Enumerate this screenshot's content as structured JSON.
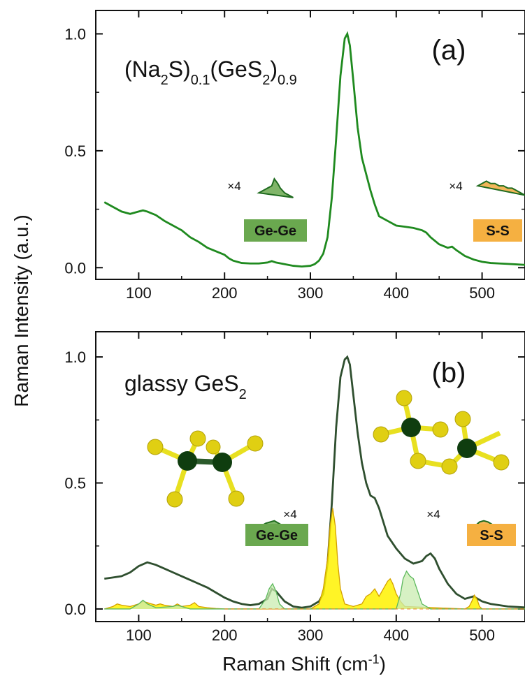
{
  "chart_data": [
    {
      "panel": "a",
      "type": "line",
      "panel_label": "(a)",
      "sample": {
        "base": "(Na",
        "s1": "2",
        "mid1": "S)",
        "s2": "0.1",
        "mid2": "(GeS",
        "s3": "2",
        "mid3": ")",
        "s4": "0.9"
      },
      "xlim": [
        50,
        550
      ],
      "ylim": [
        -0.05,
        1.1
      ],
      "xticks": [
        100,
        200,
        300,
        400,
        500
      ],
      "xtick_labels": [
        "100",
        "200",
        "300",
        "400",
        "500"
      ],
      "yticks": [
        0.0,
        0.5,
        1.0
      ],
      "ytick_labels": [
        "0.0",
        "0.5",
        "1.0"
      ],
      "series": [
        {
          "color": "#1f8a1f",
          "x": [
            60,
            70,
            80,
            90,
            100,
            105,
            110,
            120,
            130,
            140,
            150,
            160,
            170,
            180,
            190,
            200,
            205,
            210,
            220,
            230,
            240,
            250,
            255,
            260,
            270,
            280,
            290,
            300,
            305,
            310,
            315,
            320,
            325,
            330,
            335,
            340,
            343,
            346,
            350,
            355,
            360,
            365,
            370,
            375,
            380,
            390,
            400,
            410,
            420,
            430,
            435,
            440,
            450,
            460,
            465,
            470,
            480,
            490,
            500,
            510,
            520,
            530,
            540,
            550
          ],
          "y": [
            0.28,
            0.26,
            0.24,
            0.23,
            0.24,
            0.245,
            0.24,
            0.225,
            0.2,
            0.18,
            0.16,
            0.13,
            0.11,
            0.085,
            0.07,
            0.055,
            0.04,
            0.03,
            0.02,
            0.018,
            0.018,
            0.022,
            0.028,
            0.022,
            0.015,
            0.008,
            0.005,
            0.008,
            0.015,
            0.03,
            0.06,
            0.13,
            0.3,
            0.55,
            0.82,
            0.98,
            1.0,
            0.95,
            0.8,
            0.6,
            0.47,
            0.4,
            0.33,
            0.27,
            0.22,
            0.2,
            0.18,
            0.175,
            0.17,
            0.16,
            0.15,
            0.13,
            0.1,
            0.085,
            0.09,
            0.075,
            0.05,
            0.035,
            0.025,
            0.02,
            0.018,
            0.016,
            0.014,
            0.012
          ]
        }
      ],
      "insets": [
        {
          "multiplier": "×4",
          "label": "Ge-Ge",
          "badge_color": "#6aa84f",
          "x": [
            240,
            245,
            250,
            255,
            258,
            262,
            265,
            270,
            275,
            280
          ],
          "y": [
            0.32,
            0.33,
            0.34,
            0.35,
            0.38,
            0.36,
            0.34,
            0.32,
            0.31,
            0.3
          ],
          "fill": "#6aa84f"
        },
        {
          "multiplier": "×4",
          "label": "S-S",
          "badge_color": "#f5b041",
          "x": [
            495,
            500,
            505,
            510,
            515,
            520,
            525,
            530,
            535,
            540,
            545,
            550
          ],
          "y": [
            0.35,
            0.36,
            0.37,
            0.36,
            0.36,
            0.35,
            0.35,
            0.34,
            0.34,
            0.33,
            0.32,
            0.31
          ],
          "fill": "#f0a93c"
        }
      ]
    },
    {
      "panel": "b",
      "type": "line",
      "panel_label": "(b)",
      "sample": {
        "base": "glassy GeS",
        "s1": "2"
      },
      "xlim": [
        50,
        550
      ],
      "ylim": [
        -0.05,
        1.1
      ],
      "xticks": [
        100,
        200,
        300,
        400,
        500
      ],
      "xtick_labels": [
        "100",
        "200",
        "300",
        "400",
        "500"
      ],
      "yticks": [
        0.0,
        0.5,
        1.0
      ],
      "ytick_labels": [
        "0.0",
        "0.5",
        "1.0"
      ],
      "series": [
        {
          "color": "#2f4f2f",
          "x": [
            60,
            70,
            80,
            90,
            100,
            110,
            120,
            130,
            140,
            150,
            160,
            170,
            180,
            190,
            200,
            210,
            220,
            230,
            240,
            250,
            255,
            260,
            270,
            280,
            290,
            300,
            310,
            315,
            320,
            325,
            330,
            335,
            340,
            343,
            346,
            350,
            355,
            360,
            365,
            370,
            375,
            380,
            390,
            400,
            410,
            420,
            430,
            435,
            440,
            445,
            450,
            460,
            470,
            480,
            490,
            500,
            510,
            520,
            530,
            540,
            550
          ],
          "y": [
            0.12,
            0.125,
            0.13,
            0.145,
            0.17,
            0.185,
            0.175,
            0.16,
            0.145,
            0.13,
            0.115,
            0.1,
            0.085,
            0.065,
            0.045,
            0.03,
            0.02,
            0.015,
            0.02,
            0.04,
            0.08,
            0.07,
            0.03,
            0.01,
            0.005,
            0.01,
            0.03,
            0.06,
            0.18,
            0.42,
            0.72,
            0.92,
            0.99,
            1.0,
            0.97,
            0.85,
            0.7,
            0.58,
            0.5,
            0.45,
            0.44,
            0.4,
            0.29,
            0.24,
            0.2,
            0.18,
            0.19,
            0.21,
            0.22,
            0.2,
            0.16,
            0.1,
            0.06,
            0.04,
            0.05,
            0.03,
            0.02,
            0.015,
            0.01,
            0.008,
            0.006
          ]
        },
        {
          "color": "#d4a000",
          "x": [
            60,
            70,
            75,
            80,
            90,
            100,
            105,
            110,
            120,
            125,
            130,
            140,
            145,
            150,
            160,
            165,
            170,
            180,
            190,
            200,
            300,
            310,
            315,
            320,
            323,
            326,
            329,
            332,
            335,
            340,
            350,
            360,
            365,
            370,
            375,
            380,
            385,
            390,
            393,
            396,
            400,
            405,
            410,
            480,
            485,
            488,
            491,
            494,
            497,
            500,
            510,
            550
          ],
          "y": [
            0.0,
            0.01,
            0.02,
            0.015,
            0.01,
            0.02,
            0.03,
            0.025,
            0.015,
            0.02,
            0.015,
            0.01,
            0.02,
            0.01,
            0.015,
            0.025,
            0.01,
            0.005,
            0.002,
            0.0,
            0.0,
            0.02,
            0.08,
            0.2,
            0.33,
            0.4,
            0.33,
            0.18,
            0.08,
            0.02,
            0.01,
            0.02,
            0.05,
            0.06,
            0.08,
            0.05,
            0.08,
            0.11,
            0.12,
            0.1,
            0.06,
            0.03,
            0.01,
            0.0,
            0.01,
            0.03,
            0.055,
            0.04,
            0.01,
            0.0,
            0.0,
            0.0
          ]
        },
        {
          "color": "#5cb85c",
          "x": [
            60,
            90,
            100,
            105,
            110,
            120,
            140,
            145,
            150,
            160,
            240,
            248,
            252,
            256,
            260,
            264,
            270,
            400,
            405,
            408,
            412,
            416,
            420,
            425,
            430,
            440,
            550
          ],
          "y": [
            0.0,
            0.0,
            0.02,
            0.035,
            0.02,
            0.005,
            0.01,
            0.015,
            0.01,
            0.0,
            0.0,
            0.04,
            0.08,
            0.1,
            0.07,
            0.02,
            0.0,
            0.0,
            0.06,
            0.12,
            0.15,
            0.13,
            0.12,
            0.07,
            0.02,
            0.0,
            0.0
          ]
        }
      ],
      "insets": [
        {
          "multiplier": "×4",
          "label": "Ge-Ge",
          "badge_color": "#6aa84f",
          "x": [
            243,
            248,
            253,
            258,
            263,
            268,
            273
          ],
          "y": [
            0.33,
            0.34,
            0.345,
            0.35,
            0.34,
            0.33,
            0.32
          ],
          "fill": "#6aa84f"
        },
        {
          "multiplier": "×4",
          "label": "S-S",
          "badge_color": "#f5b041",
          "x": [
            492,
            497,
            502,
            507,
            512,
            517,
            522
          ],
          "y": [
            0.33,
            0.345,
            0.35,
            0.345,
            0.335,
            0.325,
            0.315
          ],
          "fill": "#f0a93c"
        }
      ]
    }
  ],
  "axes": {
    "ylabel": "Raman Intensity (a.u.)",
    "xlabel_main": "Raman Shift (cm",
    "xlabel_sup": "-1",
    "xlabel_end": ")"
  },
  "colors": {
    "ge": "#0f3d0f",
    "s": "#e8d61c",
    "bond_s": "#f0e030",
    "bond_ge": "#2b5a2b"
  }
}
